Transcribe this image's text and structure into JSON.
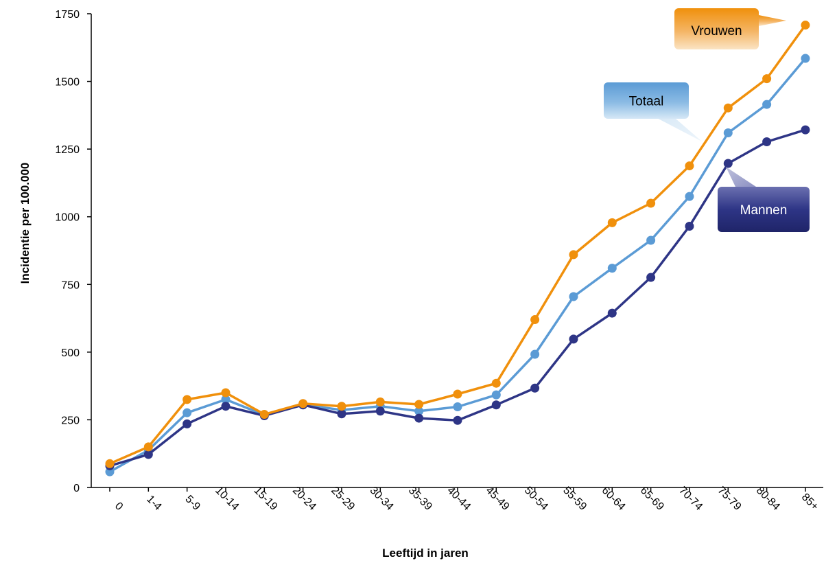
{
  "chart_data": {
    "type": "line",
    "xlabel": "Leeftijd in jaren",
    "ylabel": "Incidentie per 100.000",
    "ylim": [
      0,
      1750
    ],
    "yticks": [
      0,
      250,
      500,
      750,
      1000,
      1250,
      1500,
      1750
    ],
    "categories": [
      "0",
      "1-4",
      "5-9",
      "10-14",
      "15-19",
      "20-24",
      "25-29",
      "30-34",
      "35-39",
      "40-44",
      "45-49",
      "50-54",
      "55-59",
      "60-64",
      "65-69",
      "70-74",
      "75-79",
      "80-84",
      "85+"
    ],
    "grid": false,
    "series": [
      {
        "name": "Totaal",
        "color": "#5b9bd5",
        "values": [
          58,
          138,
          276,
          325,
          268,
          306,
          286,
          300,
          282,
          298,
          342,
          492,
          705,
          810,
          913,
          1075,
          1310,
          1415,
          1585
        ]
      },
      {
        "name": "Mannen",
        "color": "#2e3586",
        "values": [
          80,
          122,
          235,
          300,
          265,
          305,
          272,
          282,
          256,
          248,
          305,
          367,
          548,
          644,
          776,
          965,
          1197,
          1277,
          1321
        ]
      },
      {
        "name": "Vrouwen",
        "color": "#f0900c",
        "values": [
          88,
          150,
          325,
          350,
          270,
          310,
          300,
          316,
          307,
          345,
          385,
          620,
          860,
          978,
          1050,
          1188,
          1402,
          1510,
          1708
        ]
      }
    ],
    "callouts": [
      {
        "series": "Vrouwen",
        "label": "Vrouwen",
        "color": "#f0900c"
      },
      {
        "series": "Totaal",
        "label": "Totaal",
        "color": "#5b9bd5"
      },
      {
        "series": "Mannen",
        "label": "Mannen",
        "color": "#2e3586"
      }
    ]
  }
}
